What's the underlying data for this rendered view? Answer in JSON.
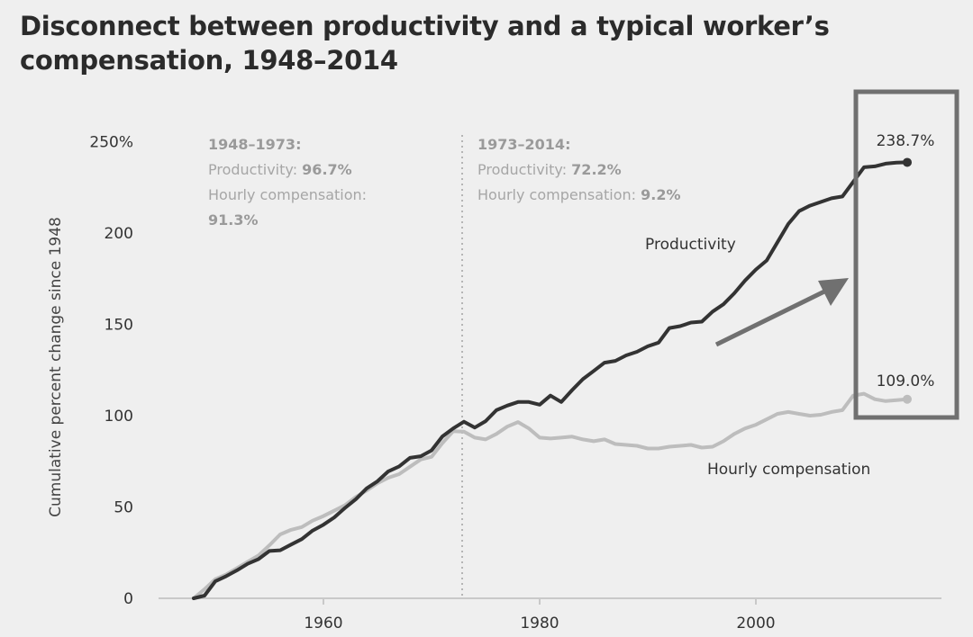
{
  "title": "Disconnect between productivity and a typical worker’s compensation, 1948–2014",
  "chart_data": {
    "type": "line",
    "title": "Disconnect between productivity and a typical worker’s compensation, 1948–2014",
    "xlabel": "",
    "ylabel": "Cumulative percent change since 1948",
    "xlim": [
      1946,
      2017
    ],
    "ylim": [
      0,
      250
    ],
    "xticks": [
      1960,
      1980,
      2000
    ],
    "yticks": [
      0,
      50,
      100,
      150,
      200,
      250
    ],
    "ytick_labels": [
      "0",
      "50",
      "100",
      "150",
      "200",
      "250%"
    ],
    "grid": false,
    "series": [
      {
        "name": "Productivity",
        "color": "#333333",
        "x": [
          1948,
          1949,
          1950,
          1951,
          1952,
          1953,
          1954,
          1955,
          1956,
          1957,
          1958,
          1959,
          1960,
          1961,
          1962,
          1963,
          1964,
          1965,
          1966,
          1967,
          1968,
          1969,
          1970,
          1971,
          1972,
          1973,
          1974,
          1975,
          1976,
          1977,
          1978,
          1979,
          1980,
          1981,
          1982,
          1983,
          1984,
          1985,
          1986,
          1987,
          1988,
          1989,
          1990,
          1991,
          1992,
          1993,
          1994,
          1995,
          1996,
          1997,
          1998,
          1999,
          2000,
          2001,
          2002,
          2003,
          2004,
          2005,
          2006,
          2007,
          2008,
          2009,
          2010,
          2011,
          2012,
          2013,
          2014
        ],
        "values": [
          0,
          1.5,
          9.3,
          12.1,
          15.3,
          18.9,
          21.5,
          25.9,
          26.3,
          29.4,
          32.4,
          37.1,
          40.3,
          44.3,
          49.5,
          54.3,
          60.2,
          64.1,
          69.5,
          72.2,
          76.9,
          77.8,
          81.0,
          88.6,
          93.0,
          96.7,
          93.5,
          97.0,
          103.0,
          105.5,
          107.5,
          107.5,
          106.0,
          111.0,
          107.5,
          114.0,
          120.0,
          124.5,
          129.0,
          130.0,
          133.0,
          135.0,
          138.0,
          140.0,
          148.0,
          149.0,
          151.0,
          151.5,
          157.0,
          161.0,
          167.0,
          174.0,
          180.0,
          185.0,
          195.0,
          205.0,
          212.0,
          215.0,
          217.0,
          219.0,
          220.0,
          228.0,
          236.0,
          236.5,
          238.0,
          238.5,
          238.7
        ]
      },
      {
        "name": "Hourly compensation",
        "color": "#bdbdbd",
        "x": [
          1948,
          1949,
          1950,
          1951,
          1952,
          1953,
          1954,
          1955,
          1956,
          1957,
          1958,
          1959,
          1960,
          1961,
          1962,
          1963,
          1964,
          1965,
          1966,
          1967,
          1968,
          1969,
          1970,
          1971,
          1972,
          1973,
          1974,
          1975,
          1976,
          1977,
          1978,
          1979,
          1980,
          1981,
          1982,
          1983,
          1984,
          1985,
          1986,
          1987,
          1988,
          1989,
          1990,
          1991,
          1992,
          1993,
          1994,
          1995,
          1996,
          1997,
          1998,
          1999,
          2000,
          2001,
          2002,
          2003,
          2004,
          2005,
          2006,
          2007,
          2008,
          2009,
          2010,
          2011,
          2012,
          2013,
          2014
        ],
        "values": [
          0,
          5.0,
          10.5,
          13.0,
          16.5,
          20.0,
          23.5,
          29.0,
          35.0,
          37.5,
          39.0,
          42.5,
          45.0,
          48.0,
          51.0,
          55.5,
          59.0,
          63.0,
          66.0,
          68.0,
          72.0,
          76.0,
          77.5,
          85.0,
          91.5,
          91.3,
          88.0,
          87.0,
          90.0,
          94.0,
          96.5,
          93.0,
          88.0,
          87.5,
          88.0,
          88.5,
          87.0,
          86.0,
          87.0,
          84.5,
          84.0,
          83.5,
          82.0,
          82.0,
          83.0,
          83.5,
          84.0,
          82.5,
          83.0,
          86.0,
          90.0,
          93.0,
          95.0,
          98.0,
          101.0,
          102.0,
          101.0,
          100.0,
          100.5,
          102.0,
          103.0,
          111.0,
          112.0,
          109.0,
          108.0,
          108.5,
          109.0
        ]
      }
    ],
    "divider": {
      "x": 1973,
      "style": "dotted"
    },
    "annotations": {
      "period1": {
        "heading": "1948–1973:",
        "productivity_label": "Productivity: ",
        "productivity_value": "96.7%",
        "compensation_label": "Hourly compensation:",
        "compensation_value": "91.3%"
      },
      "period2": {
        "heading": "1973–2014:",
        "productivity_label": "Productivity: ",
        "productivity_value": "72.2%",
        "compensation_label": "Hourly compensation: ",
        "compensation_value": "9.2%"
      },
      "productivity_end": "238.7%",
      "compensation_end": "109.0%",
      "productivity_series_label": "Productivity",
      "compensation_series_label": "Hourly compensation"
    },
    "highlight_box": {
      "x_range": [
        2009,
        2018
      ],
      "note": "boxed end values"
    },
    "arrow": {
      "direction": "up-right",
      "color": "#6e6e6e"
    }
  }
}
